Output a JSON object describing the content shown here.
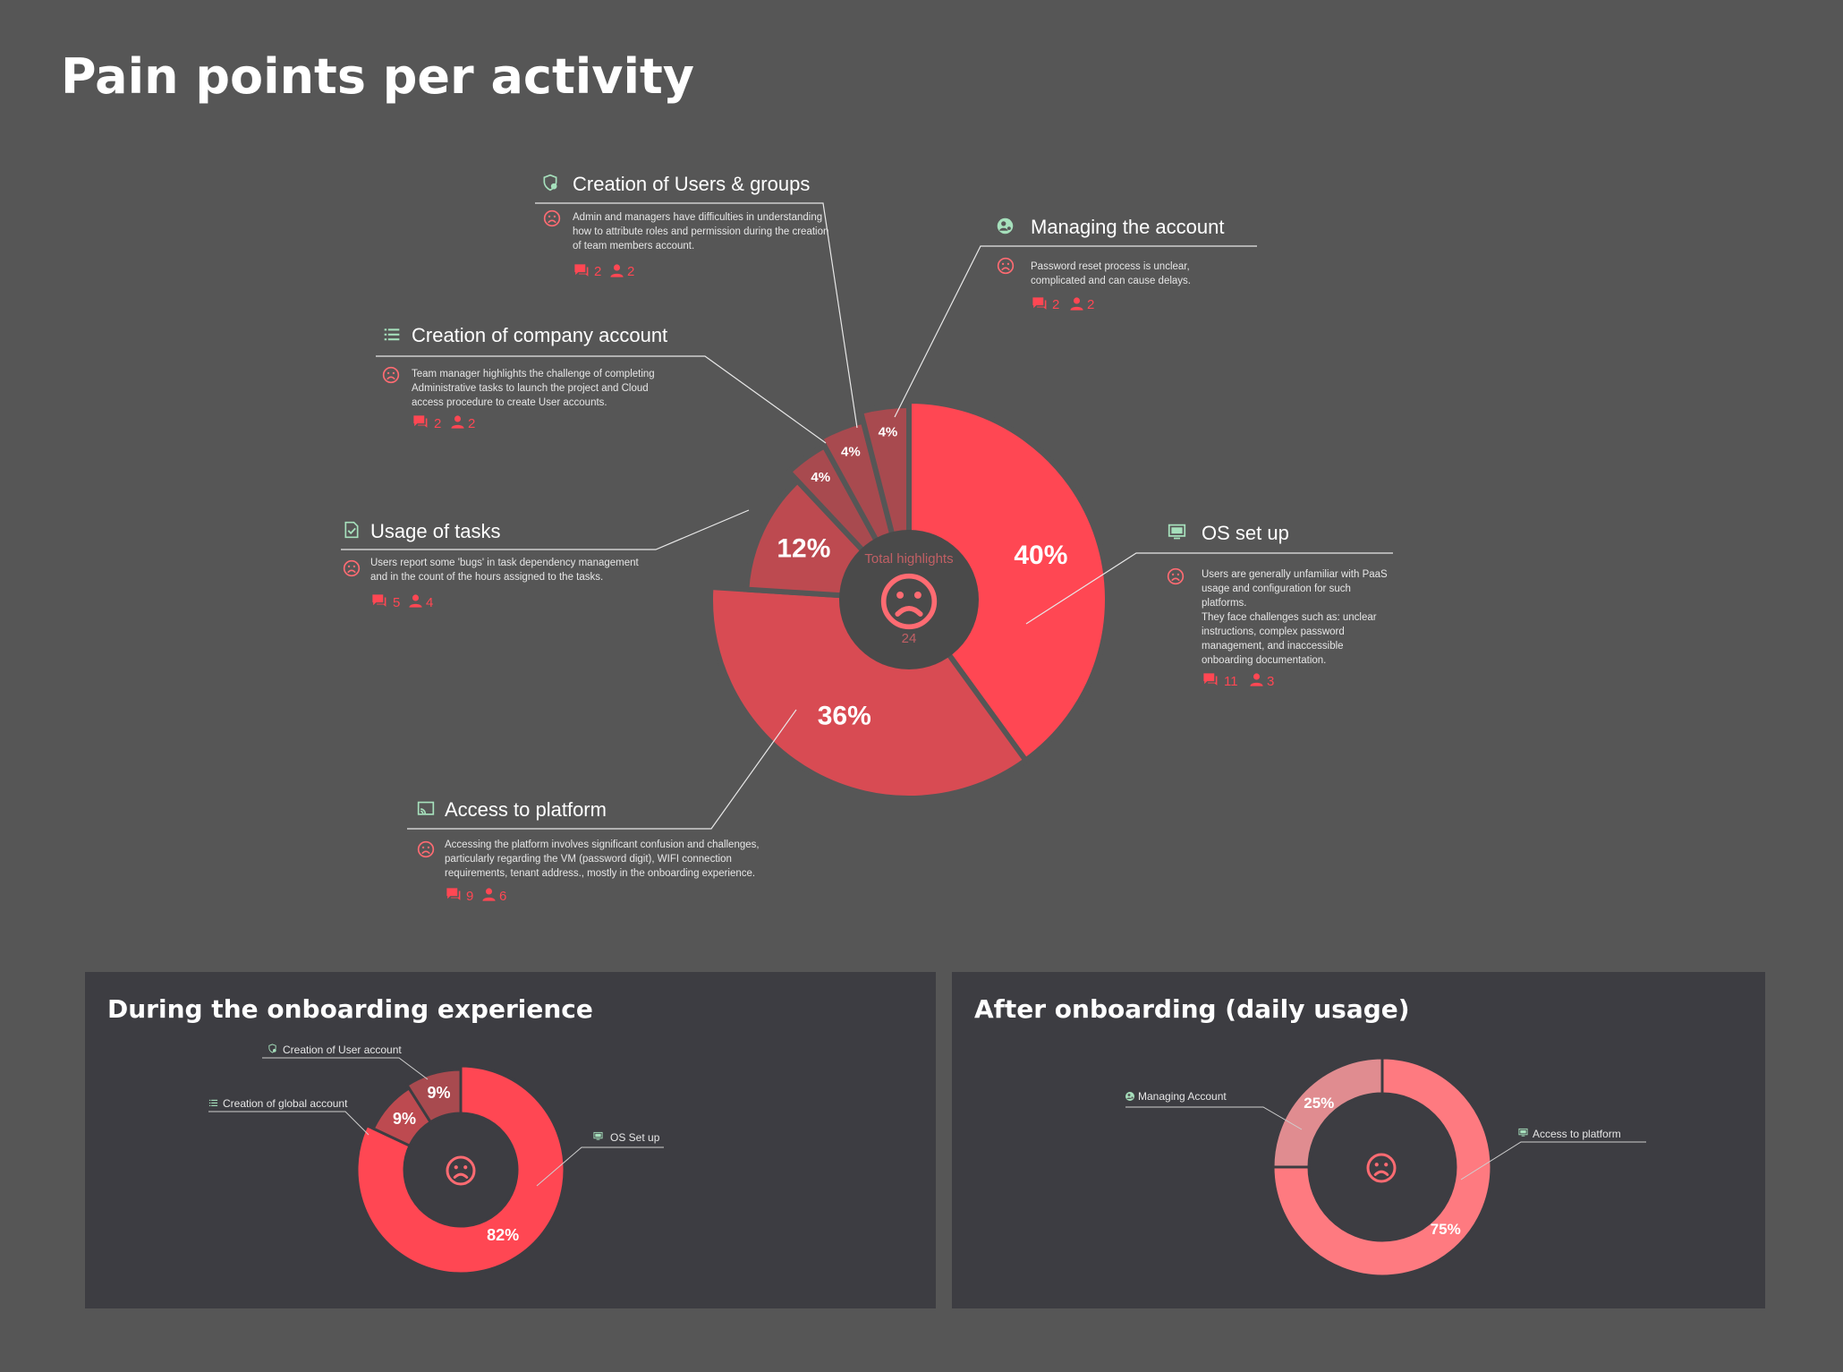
{
  "title": "Pain points per activity",
  "colors": {
    "background": "#565656",
    "panel": "#3d3d42",
    "red_main": "#ff4753",
    "red_mid": "#d84b53",
    "red_dark": "#bd4a50",
    "red_darker": "#a84a4f",
    "pink": "#fe7a80",
    "pink_light": "#e08c90",
    "accent_green": "#a6e0bc",
    "accent_red": "#ff6b72"
  },
  "center": {
    "label": "Total highlights",
    "value": "24"
  },
  "callouts": [
    {
      "id": "users-groups",
      "title": "Creation of Users & groups",
      "icon": "shield-group-icon",
      "lines": [
        "Admin and managers have difficulties in understanding",
        "how to attribute roles and permission during the creation",
        "of team members account."
      ],
      "comments": "2",
      "users": "2"
    },
    {
      "id": "managing-account",
      "title": "Managing the account",
      "icon": "user-gear-icon",
      "lines": [
        "Password reset process is unclear,",
        "complicated and can cause delays."
      ],
      "comments": "2",
      "users": "2"
    },
    {
      "id": "company-account",
      "title": "Creation of company account",
      "icon": "list-icon",
      "lines": [
        "Team manager highlights the challenge of completing",
        "Administrative tasks to launch the project and Cloud",
        "access procedure to create User accounts."
      ],
      "comments": "2",
      "users": "2"
    },
    {
      "id": "usage-tasks",
      "title": "Usage of tasks",
      "icon": "task-check-icon",
      "lines": [
        "Users report some 'bugs' in task dependency management",
        "and in the count of the hours assigned to the tasks."
      ],
      "comments": "5",
      "users": "4"
    },
    {
      "id": "os-setup",
      "title": "OS set up",
      "icon": "monitor-icon",
      "lines": [
        "Users are generally unfamiliar with PaaS",
        "usage and configuration for such",
        "platforms.",
        "They face  challenges such as: unclear",
        "instructions, complex password",
        "management, and inaccessible",
        "onboarding documentation."
      ],
      "comments": "11",
      "users": "3"
    },
    {
      "id": "access-platform",
      "title": "Access to platform",
      "icon": "cast-icon",
      "lines": [
        "Accessing the platform involves significant confusion and challenges,",
        "particularly regarding the VM (password digit), WIFI connection",
        "requirements, tenant address., mostly in the onboarding experience."
      ],
      "comments": "9",
      "users": "6"
    }
  ],
  "panels": [
    {
      "title": "During the onboarding experience"
    },
    {
      "title": "After onboarding (daily usage)"
    }
  ],
  "chart_data": [
    {
      "type": "pie",
      "title": "Pain points per activity",
      "categories": [
        "OS set up",
        "Access to platform",
        "Usage of tasks",
        "Creation of company account",
        "Creation of Users & groups",
        "Managing the account"
      ],
      "values": [
        40,
        36,
        12,
        4,
        4,
        4
      ],
      "labels": [
        "40%",
        "36%",
        "12%",
        "4%",
        "4%",
        "4%"
      ]
    },
    {
      "type": "pie",
      "title": "During the onboarding experience",
      "categories": [
        "OS Set up",
        "Creation of global account",
        "Creation of User account"
      ],
      "values": [
        82,
        9,
        9
      ],
      "labels": [
        "82%",
        "9%",
        "9%"
      ]
    },
    {
      "type": "pie",
      "title": "After onboarding (daily usage)",
      "categories": [
        "Access to platform",
        "Managing Account"
      ],
      "values": [
        75,
        25
      ],
      "labels": [
        "75%",
        "25%"
      ]
    }
  ]
}
